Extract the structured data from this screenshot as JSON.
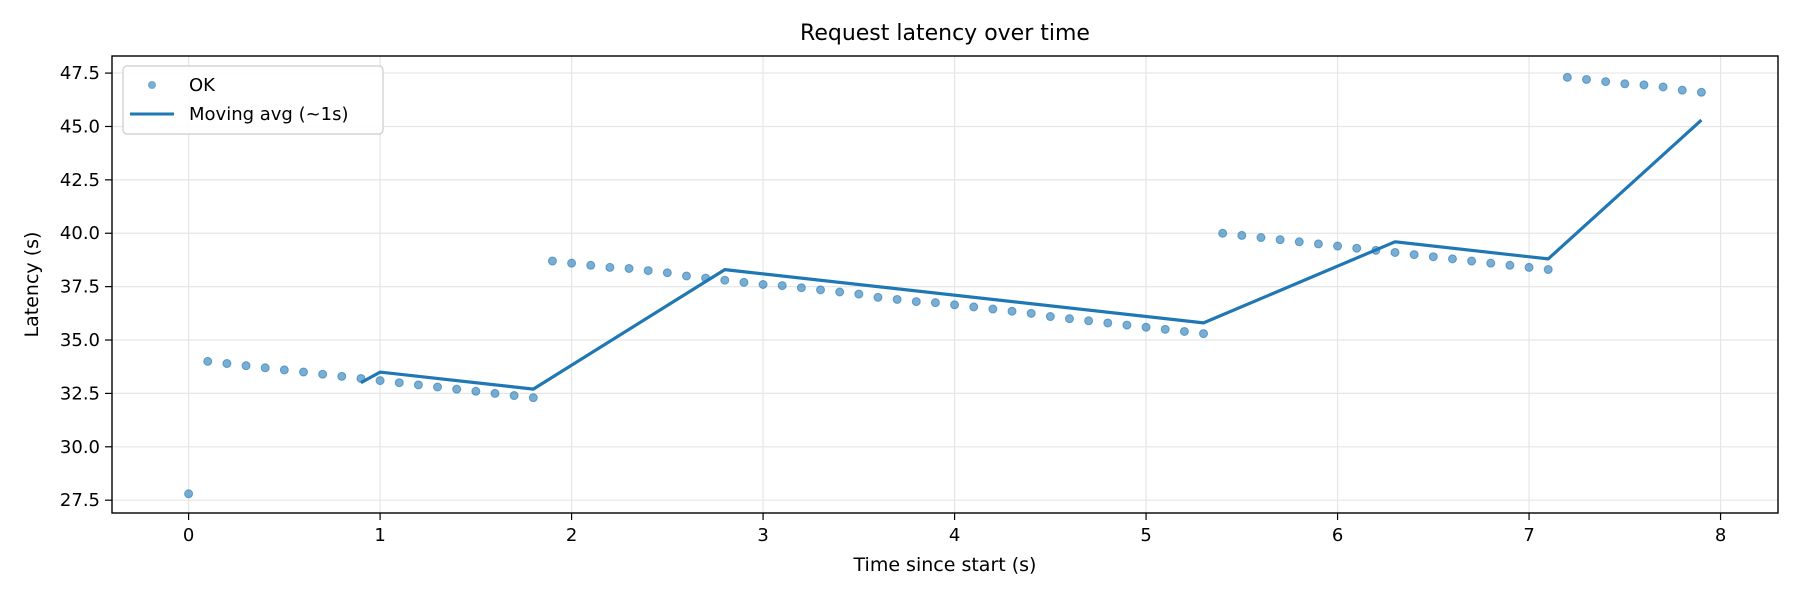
{
  "chart_data": {
    "type": "scatter",
    "title": "Request latency over time",
    "xlabel": "Time since start (s)",
    "ylabel": "Latency (s)",
    "xlim": [
      -0.4,
      8.3
    ],
    "ylim": [
      26.9,
      48.3
    ],
    "xticks": [
      "0",
      "1",
      "2",
      "3",
      "4",
      "5",
      "6",
      "7",
      "8"
    ],
    "yticks": [
      "27.5",
      "30.0",
      "32.5",
      "35.0",
      "37.5",
      "40.0",
      "42.5",
      "45.0",
      "47.5"
    ],
    "grid": true,
    "legend_position": "top-left",
    "series": [
      {
        "name": "OK",
        "kind": "scatter",
        "color": "#1f77b4",
        "x": [
          0.0,
          0.1,
          0.2,
          0.3,
          0.4,
          0.5,
          0.6,
          0.7,
          0.8,
          0.9,
          1.0,
          1.1,
          1.2,
          1.3,
          1.4,
          1.5,
          1.6,
          1.7,
          1.8,
          1.9,
          2.0,
          2.1,
          2.2,
          2.3,
          2.4,
          2.5,
          2.6,
          2.7,
          2.8,
          2.9,
          3.0,
          3.1,
          3.2,
          3.3,
          3.4,
          3.5,
          3.6,
          3.7,
          3.8,
          3.9,
          4.0,
          4.1,
          4.2,
          4.3,
          4.4,
          4.5,
          4.6,
          4.7,
          4.8,
          4.9,
          5.0,
          5.1,
          5.2,
          5.3,
          5.4,
          5.5,
          5.6,
          5.7,
          5.8,
          5.9,
          6.0,
          6.1,
          6.2,
          6.3,
          6.4,
          6.5,
          6.6,
          6.7,
          6.8,
          6.9,
          7.0,
          7.1,
          7.2,
          7.3,
          7.4,
          7.5,
          7.6,
          7.7,
          7.8,
          7.9
        ],
        "y": [
          27.8,
          34.0,
          33.9,
          33.8,
          33.7,
          33.6,
          33.5,
          33.4,
          33.3,
          33.2,
          33.1,
          33.0,
          32.9,
          32.8,
          32.7,
          32.6,
          32.5,
          32.4,
          32.3,
          38.7,
          38.6,
          38.5,
          38.4,
          38.35,
          38.25,
          38.15,
          38.0,
          37.9,
          37.8,
          37.7,
          37.6,
          37.55,
          37.45,
          37.35,
          37.25,
          37.15,
          37.0,
          36.9,
          36.8,
          36.75,
          36.65,
          36.55,
          36.45,
          36.35,
          36.25,
          36.1,
          36.0,
          35.9,
          35.8,
          35.7,
          35.6,
          35.5,
          35.4,
          35.3,
          40.0,
          39.9,
          39.8,
          39.7,
          39.6,
          39.5,
          39.4,
          39.3,
          39.2,
          39.1,
          39.0,
          38.9,
          38.8,
          38.7,
          38.6,
          38.5,
          38.4,
          38.3,
          47.3,
          47.2,
          47.1,
          47.0,
          46.95,
          46.85,
          46.7,
          46.6
        ]
      },
      {
        "name": "Moving avg (~1s)",
        "kind": "line",
        "color": "#1f77b4",
        "x": [
          0.9,
          1.0,
          1.8,
          2.8,
          5.3,
          6.3,
          7.1,
          7.9
        ],
        "y": [
          33.0,
          33.5,
          32.7,
          38.3,
          35.8,
          39.6,
          38.8,
          45.3
        ]
      }
    ]
  }
}
